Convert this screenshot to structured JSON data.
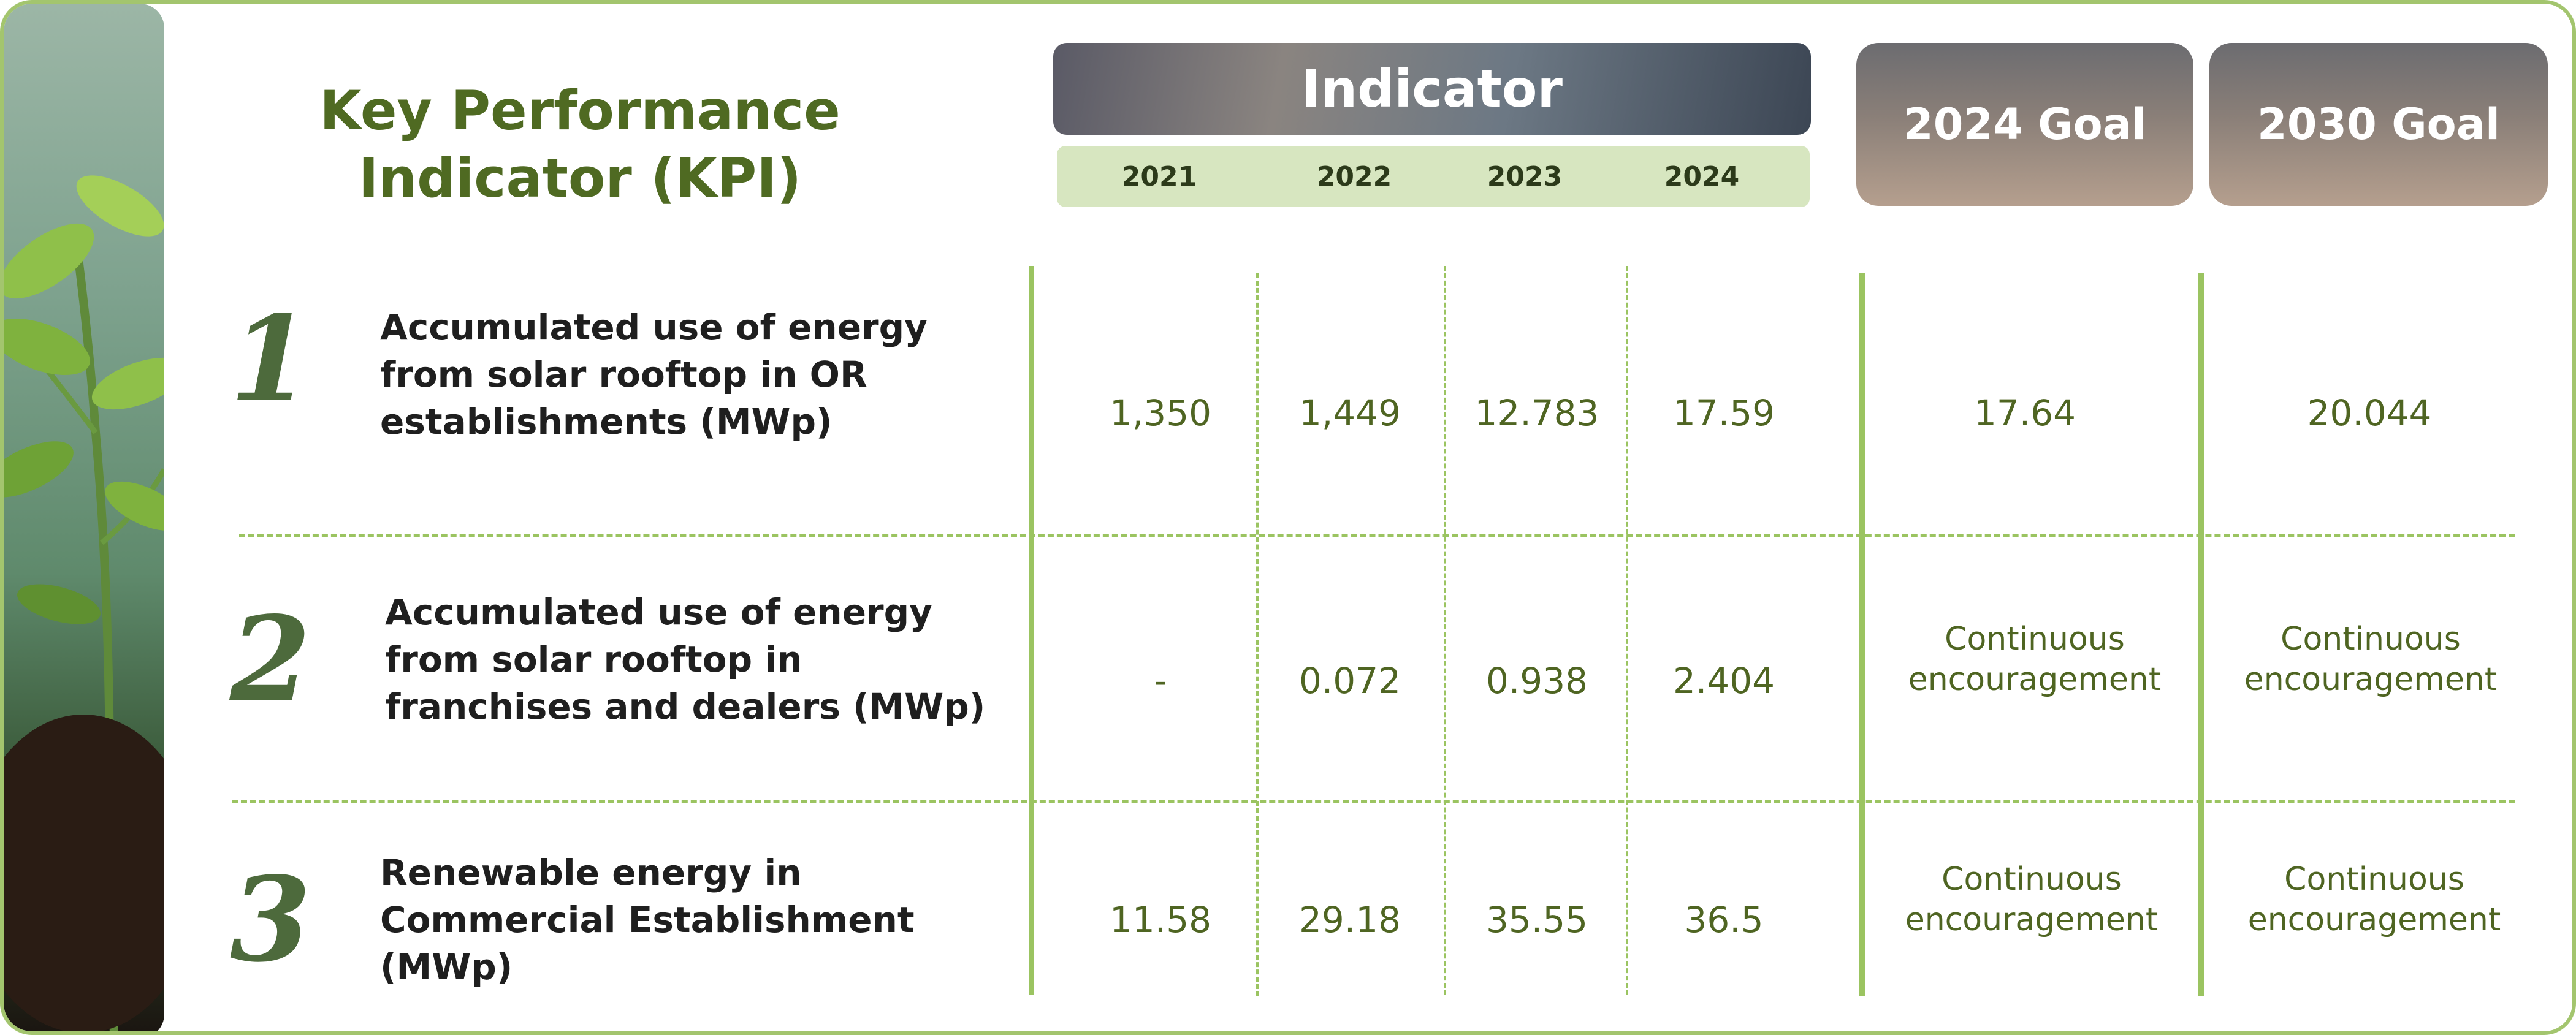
{
  "title": "Key Performance Indicator (KPI)",
  "indicator_header": "Indicator",
  "years": [
    "2021",
    "2022",
    "2023",
    "2024"
  ],
  "goal_2024_header": "2024 Goal",
  "goal_2030_header": "2030 Goal",
  "rows": [
    {
      "number": "1",
      "label_lines": [
        "Accumulated use of energy",
        "from solar rooftop in OR",
        "establishments (MWp)"
      ],
      "values": [
        "1,350",
        "1,449",
        "12.783",
        "17.59"
      ],
      "goal_2024": "17.64",
      "goal_2030": "20.044"
    },
    {
      "number": "2",
      "label_lines": [
        "Accumulated use of energy",
        "from solar rooftop in",
        "franchises and dealers (MWp)"
      ],
      "values": [
        "-",
        "0.072",
        "0.938",
        "2.404"
      ],
      "goal_2024": "Continuous encouragement",
      "goal_2030": "Continuous encouragement"
    },
    {
      "number": "3",
      "label_lines": [
        "Renewable energy in",
        "Commercial Establishment",
        "(MWp)"
      ],
      "values": [
        "11.58",
        "29.18",
        "35.55",
        "36.5"
      ],
      "goal_2024": "Continuous encouragement",
      "goal_2030": "Continuous encouragement"
    }
  ],
  "colors": {
    "accent_green": "#9bc461",
    "title_green": "#4f6a22",
    "year_bar": "#d7e6c0"
  }
}
